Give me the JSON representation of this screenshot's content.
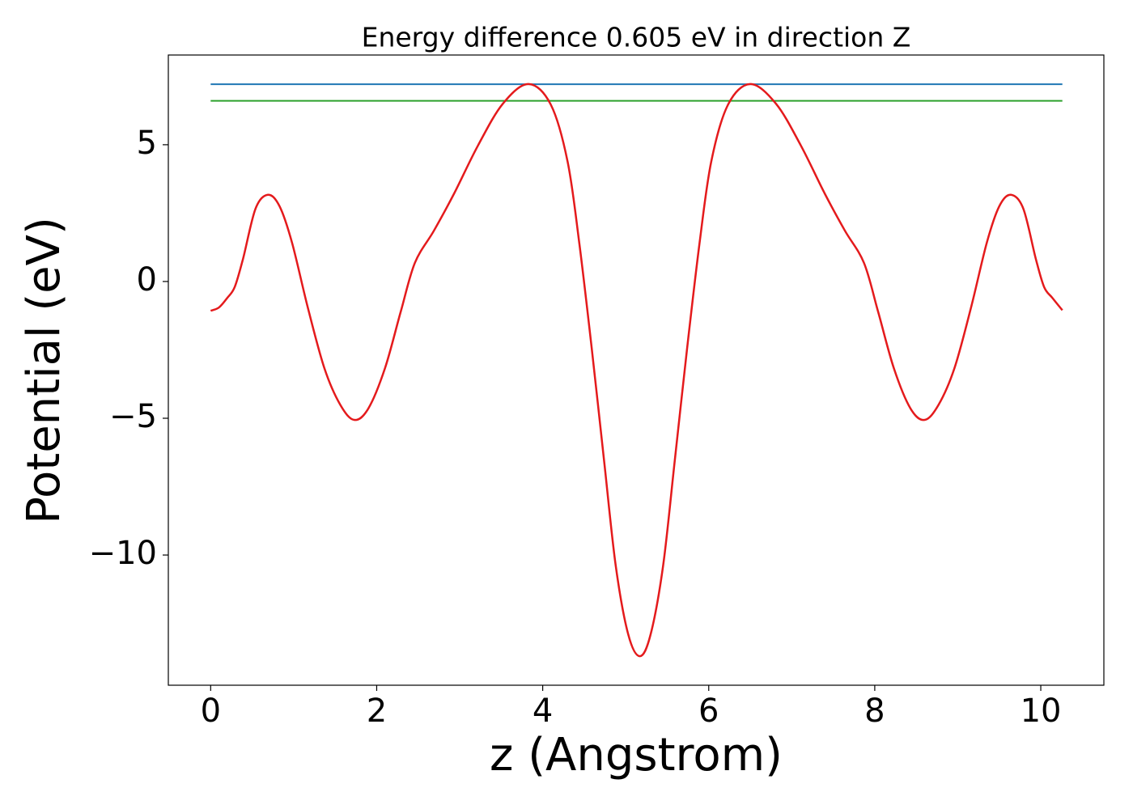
{
  "chart_data": {
    "type": "line",
    "title": "Energy difference 0.605 eV in direction Z",
    "xlabel": "z (Angstrom)",
    "ylabel": "Potential (eV)",
    "xlim": [
      -0.51,
      10.76
    ],
    "ylim": [
      -14.76,
      8.28
    ],
    "xticks": [
      0,
      2,
      4,
      6,
      8,
      10
    ],
    "yticks": [
      {
        "value": -10,
        "label": "−10"
      },
      {
        "value": -5,
        "label": "−5"
      },
      0,
      5
    ],
    "series": [
      {
        "color": "#1f77b4",
        "x": [
          0,
          10.26
        ],
        "values": [
          7.21,
          7.21
        ]
      },
      {
        "color": "#2ca02c",
        "x": [
          0,
          10.26
        ],
        "values": [
          6.605,
          6.605
        ]
      },
      {
        "color": "#e41a1c",
        "x": [
          0,
          0.1,
          0.2,
          0.29,
          0.39,
          0.54,
          0.69,
          0.83,
          0.98,
          1.17,
          1.37,
          1.56,
          1.73,
          1.9,
          2.1,
          2.29,
          2.46,
          2.69,
          2.93,
          3.22,
          3.52,
          3.83,
          4.1,
          4.3,
          4.44,
          4.59,
          4.74,
          4.88,
          5.03,
          5.17,
          5.3,
          5.45,
          5.59,
          5.74,
          5.89,
          6.03,
          6.23,
          6.5,
          6.81,
          7.11,
          7.4,
          7.64,
          7.87,
          8.04,
          8.23,
          8.43,
          8.6,
          8.77,
          8.96,
          9.16,
          9.35,
          9.5,
          9.64,
          9.79,
          9.94,
          10.04,
          10.14,
          10.26
        ],
        "values": [
          -1.07,
          -0.95,
          -0.6,
          -0.2,
          0.83,
          2.66,
          3.17,
          2.75,
          1.42,
          -0.95,
          -3.17,
          -4.5,
          -5.06,
          -4.64,
          -3.17,
          -1.1,
          0.68,
          1.86,
          3.2,
          4.97,
          6.5,
          7.22,
          6.45,
          4.38,
          1.42,
          -2.43,
          -6.57,
          -10.4,
          -12.9,
          -13.7,
          -12.9,
          -10.4,
          -6.57,
          -2.43,
          1.42,
          4.38,
          6.45,
          7.22,
          6.5,
          4.97,
          3.2,
          1.86,
          0.68,
          -1.1,
          -3.17,
          -4.64,
          -5.06,
          -4.5,
          -3.17,
          -0.95,
          1.42,
          2.75,
          3.17,
          2.66,
          0.83,
          -0.2,
          -0.6,
          -1.05
        ]
      }
    ]
  }
}
